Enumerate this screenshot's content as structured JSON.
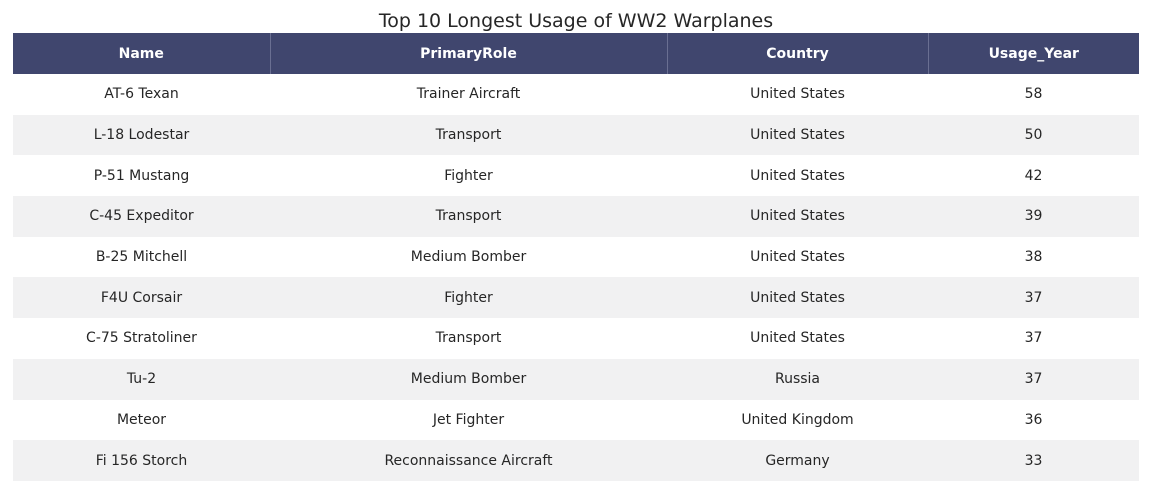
{
  "chart_data": {
    "type": "table",
    "title": "Top 10 Longest Usage of WW2 Warplanes",
    "columns": [
      "Name",
      "PrimaryRole",
      "Country",
      "Usage_Year"
    ],
    "rows": [
      [
        "AT-6 Texan",
        "Trainer Aircraft",
        "United States",
        "58"
      ],
      [
        "L-18 Lodestar",
        "Transport",
        "United States",
        "50"
      ],
      [
        "P-51 Mustang",
        "Fighter",
        "United States",
        "42"
      ],
      [
        "C-45 Expeditor",
        "Transport",
        "United States",
        "39"
      ],
      [
        "B-25 Mitchell",
        "Medium Bomber",
        "United States",
        "38"
      ],
      [
        "F4U Corsair",
        "Fighter",
        "United States",
        "37"
      ],
      [
        "C-75 Stratoliner",
        "Transport",
        "United States",
        "37"
      ],
      [
        "Tu-2",
        "Medium Bomber",
        "Russia",
        "37"
      ],
      [
        "Meteor",
        "Jet Fighter",
        "United Kingdom",
        "36"
      ],
      [
        "Fi 156 Storch",
        "Reconnaissance Aircraft",
        "Germany",
        "33"
      ]
    ],
    "colors": {
      "header_background": "#40466e",
      "header_text": "#ffffff",
      "row_alt_background": "#f1f1f2"
    }
  }
}
